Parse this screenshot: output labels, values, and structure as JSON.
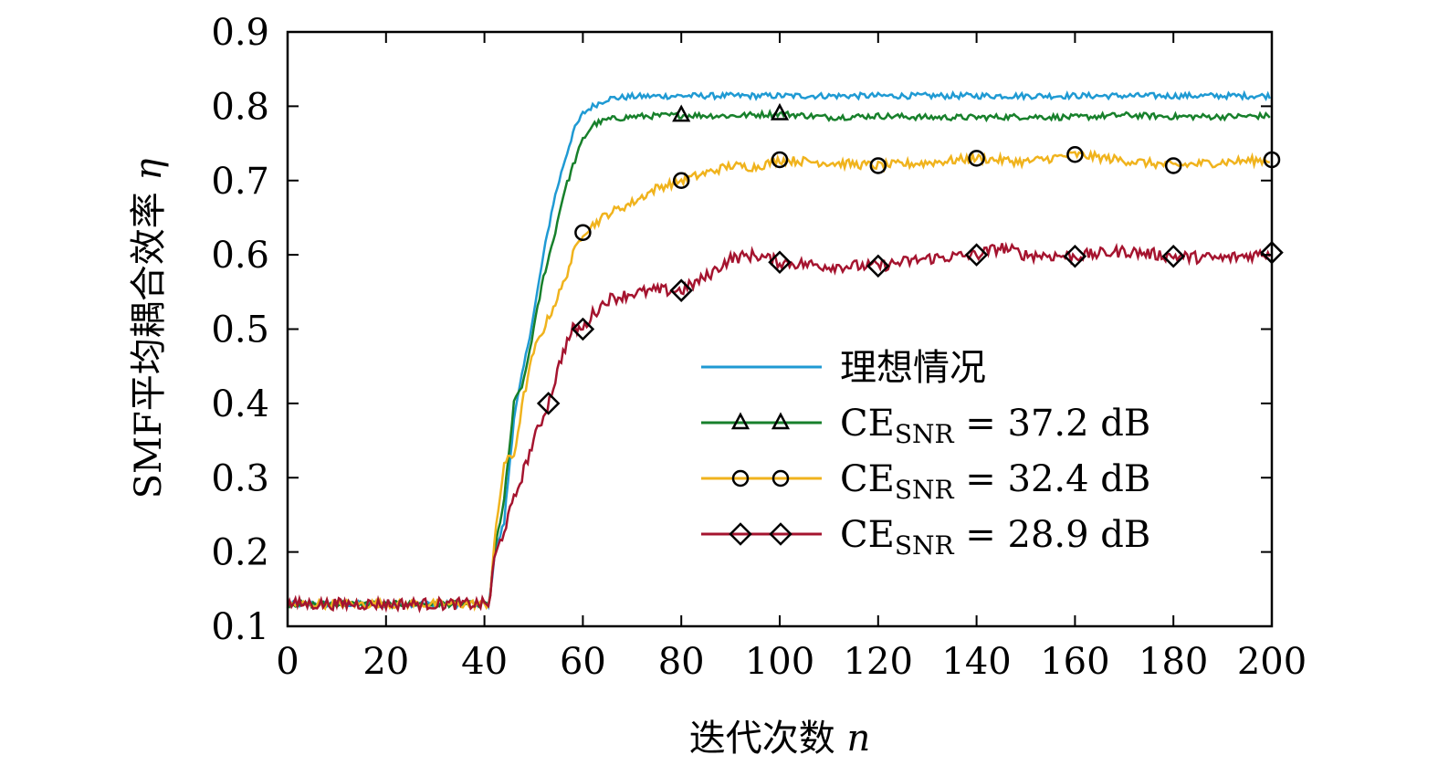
{
  "chart_data": {
    "type": "line",
    "xlabel": "迭代次数",
    "xlabel_var": "n",
    "ylabel": "SMF平均耦合效率",
    "ylabel_var": "η",
    "xlim": [
      0,
      200
    ],
    "ylim": [
      0.1,
      0.9
    ],
    "x_ticks": [
      0,
      20,
      40,
      60,
      80,
      100,
      120,
      140,
      160,
      180,
      200
    ],
    "y_ticks": [
      0.1,
      0.2,
      0.3,
      0.4,
      0.5,
      0.6,
      0.7,
      0.8,
      0.9
    ],
    "y_tick_labels": [
      "0.1",
      "0.2",
      "0.3",
      "0.4",
      "0.5",
      "0.6",
      "0.7",
      "0.8",
      "0.9"
    ],
    "grid": false,
    "legend_position": "lower-right",
    "series": [
      {
        "name": "理想情况",
        "color": "#1f9ad3",
        "marker": "none",
        "points": [
          [
            0,
            0.13
          ],
          [
            41,
            0.13
          ],
          [
            42,
            0.195
          ],
          [
            44,
            0.24
          ],
          [
            46,
            0.38
          ],
          [
            48,
            0.45
          ],
          [
            50,
            0.52
          ],
          [
            52,
            0.6
          ],
          [
            54,
            0.67
          ],
          [
            56,
            0.72
          ],
          [
            58,
            0.765
          ],
          [
            60,
            0.79
          ],
          [
            62,
            0.8
          ],
          [
            65,
            0.81
          ],
          [
            70,
            0.813
          ],
          [
            80,
            0.814
          ],
          [
            100,
            0.814
          ],
          [
            200,
            0.814
          ]
        ]
      },
      {
        "name": "CE_SNR = 37.2 dB",
        "label_main": "CE",
        "label_sub": "SNR",
        "label_rest": " = 37.2 dB",
        "color": "#17802b",
        "marker": "triangle",
        "points": [
          [
            0,
            0.13
          ],
          [
            41,
            0.13
          ],
          [
            42,
            0.2
          ],
          [
            44,
            0.27
          ],
          [
            46,
            0.4
          ],
          [
            48,
            0.43
          ],
          [
            50,
            0.5
          ],
          [
            52,
            0.57
          ],
          [
            54,
            0.62
          ],
          [
            56,
            0.68
          ],
          [
            58,
            0.72
          ],
          [
            60,
            0.755
          ],
          [
            62,
            0.775
          ],
          [
            65,
            0.782
          ],
          [
            70,
            0.786
          ],
          [
            80,
            0.788
          ],
          [
            90,
            0.787
          ],
          [
            100,
            0.79
          ],
          [
            110,
            0.785
          ],
          [
            120,
            0.787
          ],
          [
            130,
            0.785
          ],
          [
            140,
            0.785
          ],
          [
            150,
            0.786
          ],
          [
            160,
            0.785
          ],
          [
            170,
            0.788
          ],
          [
            180,
            0.786
          ],
          [
            190,
            0.786
          ],
          [
            200,
            0.787
          ]
        ],
        "markers_x": [
          80,
          100
        ]
      },
      {
        "name": "CE_SNR = 32.4 dB",
        "label_main": "CE",
        "label_sub": "SNR",
        "label_rest": " = 32.4 dB",
        "color": "#f0b31d",
        "marker": "circle",
        "points": [
          [
            0,
            0.13
          ],
          [
            41,
            0.13
          ],
          [
            42,
            0.21
          ],
          [
            44,
            0.32
          ],
          [
            46,
            0.33
          ],
          [
            48,
            0.41
          ],
          [
            50,
            0.47
          ],
          [
            52,
            0.5
          ],
          [
            54,
            0.53
          ],
          [
            56,
            0.56
          ],
          [
            58,
            0.6
          ],
          [
            60,
            0.63
          ],
          [
            65,
            0.655
          ],
          [
            70,
            0.67
          ],
          [
            75,
            0.69
          ],
          [
            80,
            0.7
          ],
          [
            85,
            0.71
          ],
          [
            90,
            0.72
          ],
          [
            95,
            0.718
          ],
          [
            100,
            0.728
          ],
          [
            110,
            0.724
          ],
          [
            120,
            0.72
          ],
          [
            130,
            0.724
          ],
          [
            140,
            0.73
          ],
          [
            150,
            0.725
          ],
          [
            160,
            0.735
          ],
          [
            170,
            0.727
          ],
          [
            180,
            0.72
          ],
          [
            190,
            0.725
          ],
          [
            200,
            0.728
          ]
        ],
        "markers_x": [
          60,
          80,
          100,
          120,
          140,
          160,
          180,
          200
        ]
      },
      {
        "name": "CE_SNR = 28.9 dB",
        "label_main": "CE",
        "label_sub": "SNR",
        "label_rest": " = 28.9 dB",
        "color": "#a5142f",
        "marker": "diamond",
        "points": [
          [
            0,
            0.13
          ],
          [
            41,
            0.13
          ],
          [
            42,
            0.19
          ],
          [
            44,
            0.23
          ],
          [
            46,
            0.27
          ],
          [
            48,
            0.31
          ],
          [
            50,
            0.35
          ],
          [
            53,
            0.4
          ],
          [
            56,
            0.47
          ],
          [
            58,
            0.5
          ],
          [
            60,
            0.5
          ],
          [
            62,
            0.52
          ],
          [
            65,
            0.54
          ],
          [
            70,
            0.548
          ],
          [
            75,
            0.552
          ],
          [
            80,
            0.552
          ],
          [
            85,
            0.57
          ],
          [
            90,
            0.595
          ],
          [
            95,
            0.6
          ],
          [
            100,
            0.59
          ],
          [
            110,
            0.585
          ],
          [
            120,
            0.585
          ],
          [
            130,
            0.595
          ],
          [
            140,
            0.6
          ],
          [
            145,
            0.61
          ],
          [
            150,
            0.6
          ],
          [
            160,
            0.598
          ],
          [
            170,
            0.605
          ],
          [
            180,
            0.598
          ],
          [
            190,
            0.595
          ],
          [
            200,
            0.603
          ]
        ],
        "markers_x": [
          53,
          60,
          80,
          100,
          120,
          140,
          160,
          180,
          200
        ]
      }
    ]
  }
}
